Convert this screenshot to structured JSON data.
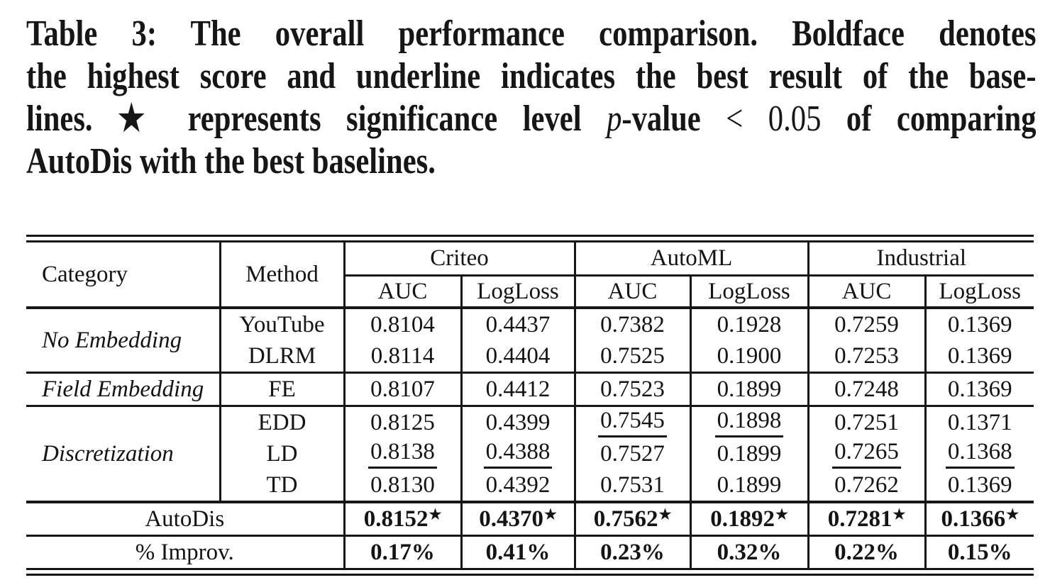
{
  "caption": {
    "line1": "Table 3: The overall performance comparison. Boldface denotes",
    "line2": "the highest score and underline indicates the best result of the base-",
    "line3_pre": "lines. ★ represents significance level ",
    "line3_p": "p",
    "line3_mid": "-value ",
    "line3_math": "< 0.05",
    "line3_post": " of comparing",
    "line4": "AutoDis with the best baselines."
  },
  "table": {
    "header": {
      "category": "Category",
      "method": "Method",
      "groups": [
        "Criteo",
        "AutoML",
        "Industrial"
      ],
      "metrics_row": [
        "AUC",
        "LogLoss",
        "AUC",
        "LogLoss",
        "AUC",
        "LogLoss"
      ]
    },
    "star_glyph": "★",
    "body_rows": [
      {
        "category": "No Embedding",
        "rowspan": 2,
        "method": "YouTube",
        "cells": [
          {
            "v": "0.8104"
          },
          {
            "v": "0.4437"
          },
          {
            "v": "0.7382"
          },
          {
            "v": "0.1928"
          },
          {
            "v": "0.7259"
          },
          {
            "v": "0.1369"
          }
        ]
      },
      {
        "method": "DLRM",
        "cells": [
          {
            "v": "0.8114"
          },
          {
            "v": "0.4404"
          },
          {
            "v": "0.7525"
          },
          {
            "v": "0.1900"
          },
          {
            "v": "0.7253"
          },
          {
            "v": "0.1369"
          }
        ]
      },
      {
        "category": "Field Embedding",
        "rowspan": 1,
        "method": "FE",
        "cells": [
          {
            "v": "0.8107"
          },
          {
            "v": "0.4412"
          },
          {
            "v": "0.7523"
          },
          {
            "v": "0.1899"
          },
          {
            "v": "0.7248"
          },
          {
            "v": "0.1369"
          }
        ]
      },
      {
        "category": "Discretization",
        "rowspan": 3,
        "method": "EDD",
        "cells": [
          {
            "v": "0.8125"
          },
          {
            "v": "0.4399"
          },
          {
            "v": "0.7545",
            "u": true
          },
          {
            "v": "0.1898",
            "u": true
          },
          {
            "v": "0.7251"
          },
          {
            "v": "0.1371"
          }
        ]
      },
      {
        "method": "LD",
        "cells": [
          {
            "v": "0.8138",
            "u": true
          },
          {
            "v": "0.4388",
            "u": true
          },
          {
            "v": "0.7527"
          },
          {
            "v": "0.1899"
          },
          {
            "v": "0.7265",
            "u": true
          },
          {
            "v": "0.1368",
            "u": true
          }
        ]
      },
      {
        "method": "TD",
        "cells": [
          {
            "v": "0.8130"
          },
          {
            "v": "0.4392"
          },
          {
            "v": "0.7531"
          },
          {
            "v": "0.1899"
          },
          {
            "v": "0.7262"
          },
          {
            "v": "0.1369"
          }
        ]
      }
    ],
    "summary_rows": [
      {
        "label": "AutoDis",
        "bold": true,
        "star": true,
        "cells": [
          {
            "v": "0.8152"
          },
          {
            "v": "0.4370"
          },
          {
            "v": "0.7562"
          },
          {
            "v": "0.1892"
          },
          {
            "v": "0.7281"
          },
          {
            "v": "0.1366"
          }
        ]
      },
      {
        "label": "% Improv.",
        "bold": true,
        "star": false,
        "cells": [
          {
            "v": "0.17%"
          },
          {
            "v": "0.41%"
          },
          {
            "v": "0.23%"
          },
          {
            "v": "0.32%"
          },
          {
            "v": "0.22%"
          },
          {
            "v": "0.15%"
          }
        ]
      }
    ]
  }
}
